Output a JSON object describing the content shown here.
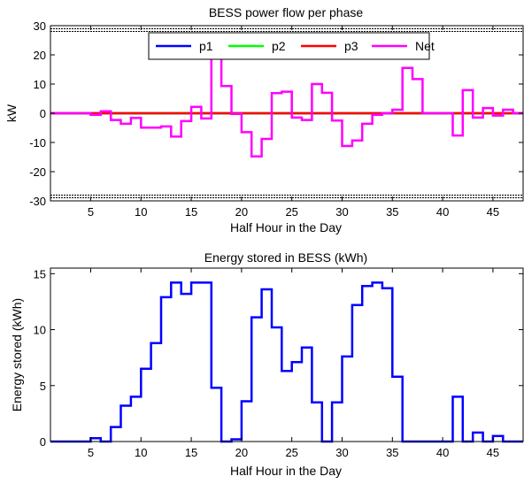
{
  "chart_data": [
    {
      "type": "line",
      "title": "BESS power flow per phase",
      "xlabel": "Half Hour in the Day",
      "ylabel": "kW",
      "xlim": [
        1,
        48
      ],
      "ylim": [
        -30,
        30
      ],
      "xticks": [
        5,
        10,
        15,
        20,
        25,
        30,
        35,
        40,
        45
      ],
      "yticks": [
        -30,
        -20,
        -10,
        0,
        10,
        20,
        30
      ],
      "limit_lines": [
        28.5,
        -28.5
      ],
      "legend_position": "top",
      "series": [
        {
          "name": "p1",
          "color": "#0000ff",
          "x": [
            1,
            48
          ],
          "values": [
            0,
            0
          ]
        },
        {
          "name": "p2",
          "color": "#00ff00",
          "x": [
            1,
            48
          ],
          "values": [
            0,
            0
          ]
        },
        {
          "name": "p3",
          "color": "#ff0000",
          "x": [
            1,
            48
          ],
          "values": [
            0,
            0
          ]
        },
        {
          "name": "Net",
          "color": "#ff00ff",
          "step": true,
          "x": [
            1,
            2,
            3,
            4,
            5,
            6,
            7,
            8,
            9,
            10,
            11,
            12,
            13,
            14,
            15,
            16,
            17,
            18,
            19,
            20,
            21,
            22,
            23,
            24,
            25,
            26,
            27,
            28,
            29,
            30,
            31,
            32,
            33,
            34,
            35,
            36,
            37,
            38,
            39,
            40,
            41,
            42,
            43,
            44,
            45,
            46,
            47,
            48
          ],
          "values": [
            0,
            0,
            0,
            0,
            -0.5,
            0.7,
            -2.3,
            -3.6,
            -1.6,
            -4.9,
            -4.9,
            -4.5,
            -8.0,
            -2.7,
            2.2,
            -1.8,
            19.0,
            9.3,
            -0.2,
            -6.5,
            -14.8,
            -8.8,
            6.9,
            7.4,
            -1.5,
            -2.3,
            10.0,
            7.0,
            -2.5,
            -11.2,
            -9.3,
            -3.6,
            -0.5,
            0,
            1.2,
            15.5,
            11.7,
            0,
            0,
            0,
            -7.6,
            7.9,
            -1.5,
            1.8,
            -0.8,
            1.2,
            0,
            0
          ]
        }
      ]
    },
    {
      "type": "line",
      "title": "Energy stored in BESS (kWh)",
      "xlabel": "Half Hour in the Day",
      "ylabel": "Energy stored (kWh)",
      "xlim": [
        1,
        48
      ],
      "ylim": [
        0,
        15.5
      ],
      "xticks": [
        5,
        10,
        15,
        20,
        25,
        30,
        35,
        40,
        45
      ],
      "yticks": [
        0,
        5,
        10,
        15
      ],
      "series": [
        {
          "name": "Energy",
          "color": "#0000ff",
          "step": true,
          "x": [
            1,
            2,
            3,
            4,
            5,
            6,
            7,
            8,
            9,
            10,
            11,
            12,
            13,
            14,
            15,
            16,
            17,
            18,
            19,
            20,
            21,
            22,
            23,
            24,
            25,
            26,
            27,
            28,
            29,
            30,
            31,
            32,
            33,
            34,
            35,
            36,
            37,
            38,
            39,
            40,
            41,
            42,
            43,
            44,
            45,
            46,
            47,
            48
          ],
          "values": [
            0,
            0,
            0,
            0,
            0.3,
            0,
            1.3,
            3.2,
            4.0,
            6.5,
            8.8,
            12.9,
            14.2,
            13.2,
            14.2,
            14.2,
            4.8,
            0,
            0.2,
            3.6,
            11.1,
            13.6,
            10.2,
            6.3,
            7.1,
            8.4,
            3.5,
            0,
            3.5,
            7.6,
            12.2,
            13.9,
            14.2,
            13.7,
            5.8,
            0,
            0,
            0,
            0,
            0,
            4.0,
            0,
            0.8,
            0,
            0.5,
            0,
            0,
            0
          ]
        }
      ]
    }
  ]
}
